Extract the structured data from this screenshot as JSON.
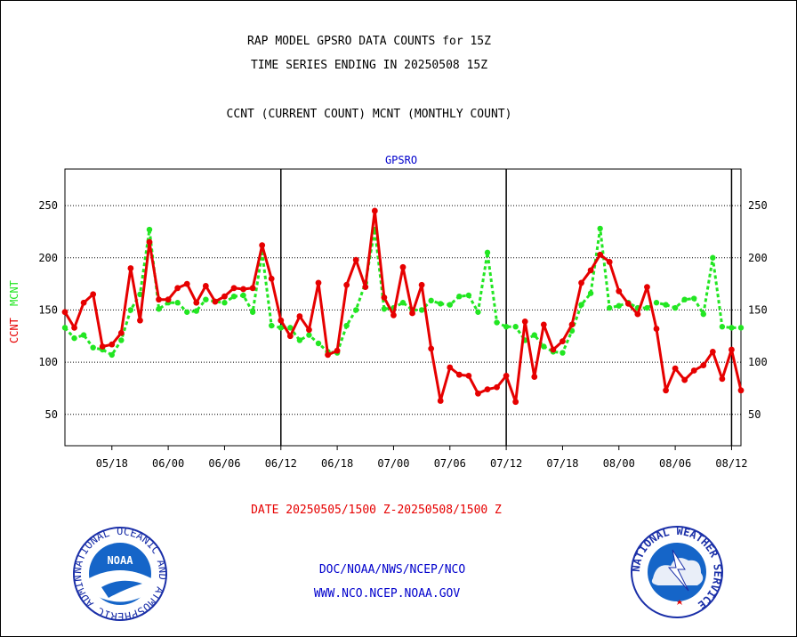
{
  "header": {
    "title_line1": "RAP MODEL GPSRO DATA COUNTS for 15Z",
    "title_line2": "TIME SERIES ENDING IN 20250508 15Z",
    "subtitle": "CCNT (CURRENT COUNT) MCNT (MONTHLY COUNT)"
  },
  "footer": {
    "date_range": "DATE 20250505/1500 Z-20250508/1500 Z",
    "org_line": "DOC/NOAA/NWS/NCEP/NCO",
    "url_line": "WWW.NCO.NCEP.NOAA.GOV"
  },
  "logos": {
    "noaa_text": "NOAA",
    "noaa_ring": "NATIONAL OCEANIC AND ATMOSPHERIC ADMINISTRATION • U.S. DEPARTMENT OF COMMERCE",
    "nws_ring": "NATIONAL WEATHER SERVICE"
  },
  "colors": {
    "ccnt": "#e60000",
    "mcnt": "#22e622",
    "title_blue": "#0000cc",
    "date_red": "#e60000"
  },
  "chart_data": {
    "type": "line",
    "title": "GPSRO",
    "ylabel_left": [
      "CCNT",
      "MCNT"
    ],
    "ylim": [
      20,
      285
    ],
    "yticks": [
      50,
      100,
      150,
      200,
      250
    ],
    "xlabels": [
      "05/18",
      "06/00",
      "06/06",
      "06/12",
      "06/18",
      "07/00",
      "07/06",
      "07/12",
      "07/18",
      "08/00",
      "08/06",
      "08/12"
    ],
    "xlabel_index": [
      5,
      11,
      17,
      23,
      29,
      35,
      41,
      47,
      53,
      59,
      65,
      71
    ],
    "day_boundaries_index": [
      23,
      47,
      71
    ],
    "x_count": 73,
    "grid": true,
    "series": [
      {
        "name": "CCNT",
        "values": [
          148,
          133,
          157,
          165,
          115,
          117,
          128,
          190,
          140,
          215,
          160,
          160,
          171,
          175,
          157,
          173,
          158,
          163,
          171,
          170,
          171,
          212,
          180,
          140,
          125,
          144,
          131,
          176,
          107,
          111,
          174,
          198,
          172,
          245,
          162,
          145,
          191,
          147,
          174,
          113,
          63,
          95,
          88,
          87,
          70,
          74,
          76,
          87,
          62,
          139,
          86,
          136,
          112,
          120,
          136,
          176,
          188,
          203,
          196,
          168,
          156,
          146,
          172,
          132,
          73,
          94,
          83,
          92,
          97,
          110,
          84,
          112,
          73
        ]
      },
      {
        "name": "MCNT",
        "values": [
          133,
          123,
          126,
          114,
          112,
          107,
          121,
          150,
          165,
          227,
          151,
          157,
          157,
          148,
          149,
          160,
          158,
          157,
          163,
          164,
          148,
          205,
          135,
          133,
          133,
          121,
          126,
          118,
          110,
          109,
          135,
          150,
          176,
          227,
          151,
          152,
          157,
          150,
          150,
          159,
          156,
          155,
          163,
          164,
          148,
          205,
          138,
          134,
          134,
          121,
          126,
          115,
          110,
          109,
          130,
          155,
          166,
          228,
          152,
          154,
          157,
          152,
          152,
          157,
          155,
          152,
          160,
          161,
          146,
          200,
          134,
          133,
          133
        ]
      }
    ]
  }
}
